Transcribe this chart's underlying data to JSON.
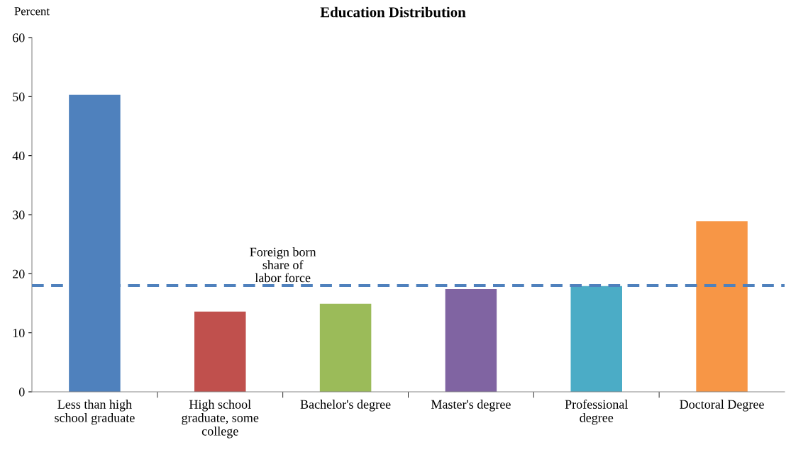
{
  "chart_data": {
    "type": "bar",
    "title": "Education Distribution",
    "ylabel": "Percent",
    "categories": [
      "Less than high\nschool graduate",
      "High school\ngraduate, some\ncollege",
      "Bachelor's degree",
      "Master's degree",
      "Professional\ndegree",
      "Doctoral Degree"
    ],
    "values": [
      50.3,
      13.6,
      14.9,
      17.4,
      17.9,
      28.9
    ],
    "colors": [
      "#4f81bd",
      "#c0504d",
      "#9bbb59",
      "#8064a2",
      "#4bacc6",
      "#f79646"
    ],
    "ylim": [
      0,
      60
    ],
    "yticks": [
      0,
      10,
      20,
      30,
      40,
      50,
      60
    ],
    "grid": false,
    "legend": false,
    "ref_lines": [
      {
        "axis": "y",
        "value": 18,
        "label": "Foreign born\nshare of\nlabor force",
        "color": "#4f81bd",
        "line_style": "dashed"
      }
    ]
  }
}
